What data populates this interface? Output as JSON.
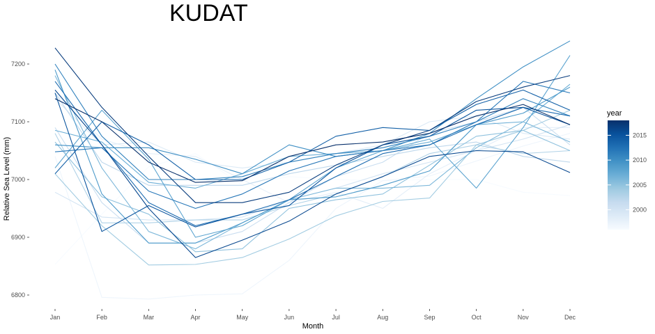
{
  "chart_data": {
    "type": "line",
    "title": "KUDAT",
    "xlabel": "Month",
    "ylabel": "Relative Sea Level (mm)",
    "categories": [
      "Jan",
      "Feb",
      "Mar",
      "Apr",
      "May",
      "Jun",
      "Jul",
      "Aug",
      "Sep",
      "Oct",
      "Nov",
      "Dec"
    ],
    "yticks": [
      6800,
      6900,
      7000,
      7100,
      7200
    ],
    "ylim": [
      6775,
      7245
    ],
    "grid": false,
    "legend": {
      "title": "year",
      "position": "right",
      "type": "colorbar",
      "ticks": [
        2000,
        2005,
        2010,
        2015
      ],
      "range": [
        1996,
        2018
      ],
      "colors": [
        "#f7fbff",
        "#deebf7",
        "#c6dbef",
        "#9ecae1",
        "#6baed6",
        "#4292c6",
        "#2171b5",
        "#08519c",
        "#08306b"
      ]
    },
    "series": [
      {
        "year": 1996,
        "values": [
          6853,
          6940,
          7022,
          7045,
          6990,
          7005,
          7000,
          6998,
          7000,
          7000,
          6978,
          6972
        ]
      },
      {
        "year": 1997,
        "values": [
          7040,
          6796,
          6793,
          6800,
          6802,
          6860,
          6950,
          6998,
          7006,
          7032,
          7058,
          7080
        ]
      },
      {
        "year": 1998,
        "values": [
          7150,
          7070,
          7045,
          7040,
          7000,
          6960,
          6978,
          6950,
          7010,
          7050,
          7090,
          7090
        ]
      },
      {
        "year": 1999,
        "values": [
          7140,
          7060,
          7065,
          7030,
          7020,
          7030,
          7045,
          7060,
          7100,
          7110,
          7080,
          7070
        ]
      },
      {
        "year": 2000,
        "values": [
          6978,
          6935,
          6930,
          6930,
          6935,
          6965,
          6985,
          7010,
          7030,
          7050,
          7070,
          7095
        ]
      },
      {
        "year": 2001,
        "values": [
          7090,
          6960,
          6890,
          6890,
          6910,
          6960,
          7005,
          7030,
          7080,
          7100,
          7125,
          7060
        ]
      },
      {
        "year": 2002,
        "values": [
          7150,
          7030,
          6990,
          6990,
          6990,
          7010,
          7025,
          7040,
          7055,
          7065,
          7040,
          7030
        ]
      },
      {
        "year": 2003,
        "values": [
          7080,
          6925,
          6925,
          6930,
          6930,
          6955,
          6975,
          7005,
          7045,
          7060,
          7045,
          7050
        ]
      },
      {
        "year": 2004,
        "values": [
          7010,
          6920,
          6852,
          6853,
          6865,
          6897,
          6937,
          6962,
          6968,
          7060,
          7085,
          7120
        ]
      },
      {
        "year": 2005,
        "values": [
          7065,
          6970,
          6940,
          6875,
          6880,
          6950,
          6965,
          6975,
          7025,
          7075,
          7085,
          7050
        ]
      },
      {
        "year": 2006,
        "values": [
          7180,
          7020,
          6910,
          6880,
          6925,
          6965,
          6985,
          6985,
          6990,
          7055,
          7100,
          7065
        ]
      },
      {
        "year": 2007,
        "values": [
          7085,
          7065,
          6995,
          6985,
          7010,
          7040,
          7045,
          7050,
          7065,
          7095,
          7100,
          7165
        ]
      },
      {
        "year": 2008,
        "values": [
          7020,
          7120,
          7035,
          6900,
          6920,
          6965,
          7020,
          7050,
          7070,
          6985,
          7090,
          7215
        ]
      },
      {
        "year": 2009,
        "values": [
          7190,
          6975,
          6890,
          6890,
          6925,
          6965,
          6970,
          6990,
          7015,
          7095,
          7115,
          7160
        ]
      },
      {
        "year": 2010,
        "values": [
          7060,
          7055,
          7055,
          7035,
          7010,
          7060,
          7040,
          7050,
          7080,
          7140,
          7195,
          7240
        ]
      },
      {
        "year": 2011,
        "values": [
          7200,
          7075,
          7000,
          7000,
          7005,
          7030,
          7045,
          7055,
          7075,
          7100,
          7140,
          7110
        ]
      },
      {
        "year": 2012,
        "values": [
          7048,
          7055,
          6980,
          6950,
          6975,
          7015,
          7040,
          7050,
          7060,
          7100,
          7170,
          7150
        ]
      },
      {
        "year": 2013,
        "values": [
          7170,
          7060,
          6960,
          6920,
          6940,
          6965,
          7005,
          7045,
          7060,
          7095,
          7125,
          7110
        ]
      },
      {
        "year": 2014,
        "values": [
          7010,
          7100,
          7060,
          7000,
          7000,
          7030,
          7075,
          7090,
          7085,
          7130,
          7155,
          7120
        ]
      },
      {
        "year": 2015,
        "values": [
          7150,
          6910,
          6955,
          6918,
          6940,
          6955,
          7020,
          7060,
          7075,
          7120,
          7125,
          7095
        ]
      },
      {
        "year": 2016,
        "values": [
          7155,
          7060,
          6950,
          6865,
          6895,
          6928,
          6975,
          7005,
          7040,
          7050,
          7048,
          7012
        ]
      },
      {
        "year": 2017,
        "values": [
          7228,
          7125,
          7040,
          6960,
          6960,
          6978,
          7025,
          7060,
          7085,
          7135,
          7160,
          7180
        ]
      },
      {
        "year": 2018,
        "values": [
          7140,
          7100,
          7030,
          6995,
          6998,
          7040,
          7060,
          7065,
          7080,
          7110,
          7130,
          7095
        ]
      }
    ]
  }
}
